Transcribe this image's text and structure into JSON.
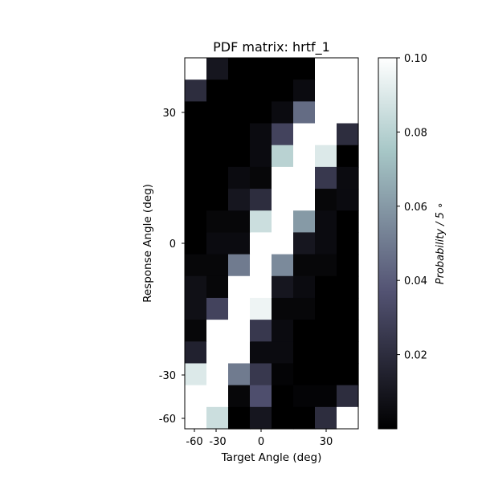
{
  "chart_data": {
    "type": "heatmap",
    "title": "PDF matrix: hrtf_1",
    "xlabel": "Target Angle (deg)",
    "ylabel": "Response Angle (deg)",
    "x_tick_labels": [
      "-60",
      "-30",
      "0",
      "30"
    ],
    "y_tick_labels": [
      "30",
      "0",
      "-30",
      "-60"
    ],
    "colorbar": {
      "label": "Probability / 5 ∘",
      "vmin": 0,
      "vmax": 0.1,
      "ticks": [
        "0.02",
        "0.04",
        "0.06",
        "0.08",
        "0.10"
      ],
      "colormap": "bone"
    },
    "rows_top_to_bottom": [
      [
        0.1,
        0.01,
        0.0,
        0.0,
        0.0,
        0.0,
        0.1,
        0.1
      ],
      [
        0.02,
        0.0,
        0.0,
        0.0,
        0.0,
        0.005,
        0.1,
        0.1
      ],
      [
        0.0,
        0.0,
        0.0,
        0.0,
        0.005,
        0.045,
        0.1,
        0.1
      ],
      [
        0.0,
        0.0,
        0.0,
        0.005,
        0.03,
        0.1,
        0.1,
        0.02
      ],
      [
        0.0,
        0.0,
        0.0,
        0.005,
        0.08,
        0.1,
        0.09,
        0.0
      ],
      [
        0.0,
        0.0,
        0.005,
        0.003,
        0.1,
        0.1,
        0.025,
        0.005
      ],
      [
        0.0,
        0.0,
        0.01,
        0.02,
        0.1,
        0.1,
        0.003,
        0.005
      ],
      [
        0.0,
        0.003,
        0.003,
        0.085,
        0.1,
        0.06,
        0.005,
        0.0
      ],
      [
        0.0,
        0.005,
        0.005,
        0.1,
        0.1,
        0.01,
        0.005,
        0.0
      ],
      [
        0.003,
        0.003,
        0.05,
        0.1,
        0.055,
        0.003,
        0.003,
        0.0
      ],
      [
        0.007,
        0.003,
        0.1,
        0.1,
        0.01,
        0.005,
        0.0,
        0.0
      ],
      [
        0.007,
        0.03,
        0.1,
        0.095,
        0.003,
        0.003,
        0.0,
        0.0
      ],
      [
        0.003,
        0.1,
        0.1,
        0.025,
        0.005,
        0.0,
        0.0,
        0.0
      ],
      [
        0.015,
        0.1,
        0.1,
        0.005,
        0.005,
        0.0,
        0.0,
        0.0
      ],
      [
        0.09,
        0.1,
        0.05,
        0.025,
        0.002,
        0.0,
        0.0,
        0.0
      ],
      [
        0.1,
        0.1,
        0.003,
        0.035,
        0.0,
        0.002,
        0.002,
        0.02
      ],
      [
        0.1,
        0.085,
        0.0,
        0.01,
        0.0,
        0.0,
        0.02,
        0.1
      ]
    ]
  }
}
